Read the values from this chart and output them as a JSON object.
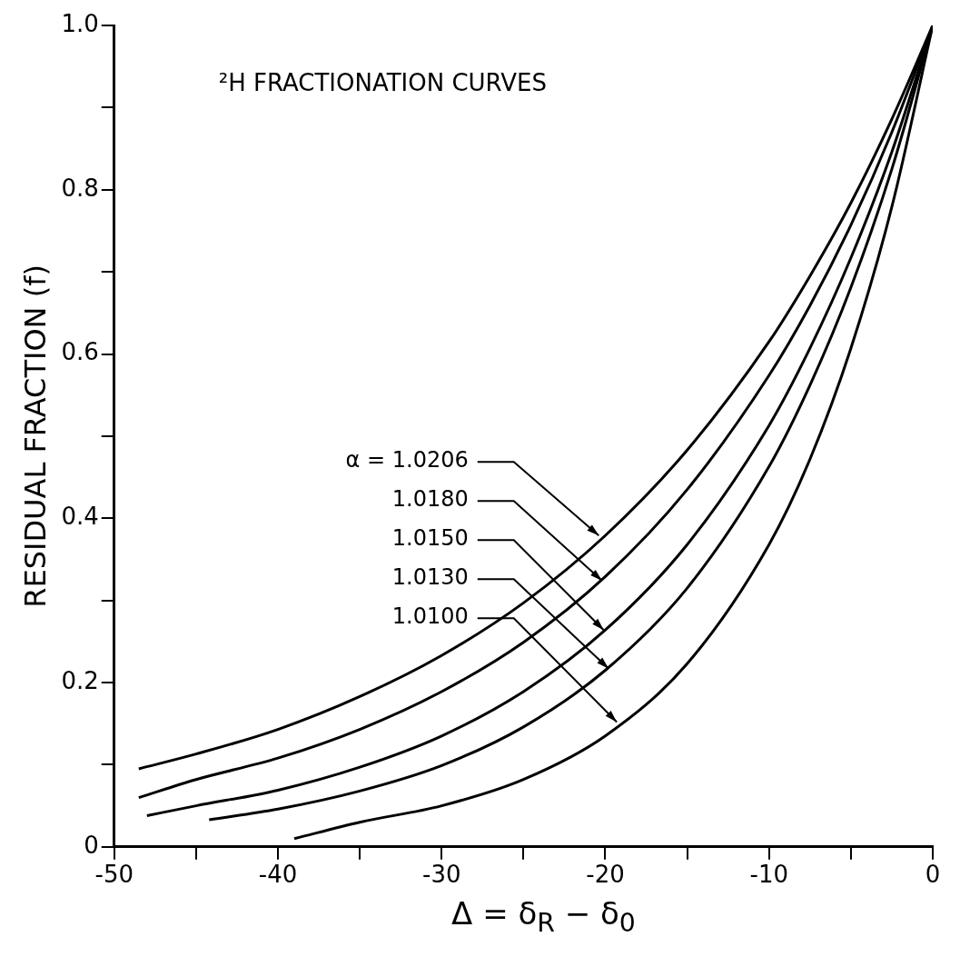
{
  "chart_data": {
    "type": "line",
    "title": "²H FRACTIONATION CURVES",
    "xlabel": "Δ = δ$_{R}$ − δ$_{0}$",
    "ylabel": "RESIDUAL FRACTION (f)",
    "xlim": [
      -50,
      0
    ],
    "ylim": [
      0,
      1
    ],
    "xticks": [
      -50,
      {
        "value": -45,
        "label": null
      },
      -40,
      {
        "value": -35,
        "label": null
      },
      -30,
      {
        "value": -25,
        "label": null
      },
      -20,
      {
        "value": -15,
        "label": null
      },
      -10,
      {
        "value": -5,
        "label": null
      },
      0
    ],
    "yticks": [
      0,
      {
        "value": 0.1,
        "label": null
      },
      0.2,
      {
        "value": 0.3,
        "label": null
      },
      0.4,
      {
        "value": 0.5,
        "label": null
      },
      0.6,
      {
        "value": 0.7,
        "label": null
      },
      0.8,
      {
        "value": 0.9,
        "label": null
      },
      {
        "value": 1,
        "label": "1.0"
      }
    ],
    "grid": false,
    "legend": false,
    "marker": "none",
    "line_style": "solid",
    "series": [
      {
        "color": "#000000",
        "x": [
          -48.5,
          -45,
          -40,
          -35,
          -30,
          -25,
          -20,
          -15,
          -10,
          -7.5,
          -5,
          -2.5,
          0
        ],
        "values": [
          0.095,
          0.113,
          0.143,
          0.183,
          0.233,
          0.297,
          0.379,
          0.483,
          0.615,
          0.695,
          0.784,
          0.886,
          1
        ]
      },
      {
        "color": "#000000",
        "x": [
          -48.5,
          -45,
          -40,
          -35,
          -30,
          -25,
          -20,
          -15,
          -10,
          -7.5,
          -5,
          -2.5,
          0
        ],
        "values": [
          0.06,
          0.082,
          0.108,
          0.143,
          0.189,
          0.249,
          0.329,
          0.435,
          0.574,
          0.659,
          0.757,
          0.87,
          1
        ]
      },
      {
        "color": "#000000",
        "x": [
          -48,
          -45,
          -40,
          -35,
          -30,
          -25,
          -20,
          -15,
          -10,
          -7.5,
          -5,
          -2.5,
          0
        ],
        "values": [
          0.038,
          0.05,
          0.069,
          0.097,
          0.135,
          0.189,
          0.264,
          0.368,
          0.513,
          0.607,
          0.717,
          0.846,
          1
        ]
      },
      {
        "color": "#000000",
        "x": [
          -44.2,
          -40,
          -35,
          -30,
          -25,
          -20,
          -15,
          -10,
          -7.5,
          -5,
          -2.5,
          0
        ],
        "values": [
          0.033,
          0.046,
          0.068,
          0.099,
          0.146,
          0.215,
          0.315,
          0.463,
          0.562,
          0.681,
          0.825,
          1
        ]
      },
      {
        "color": "#000000",
        "x": [
          -39,
          -35,
          -30,
          -25,
          -20,
          -15,
          -10,
          -7.5,
          -5,
          -2.5,
          0
        ],
        "values": [
          0.01,
          0.03,
          0.05,
          0.082,
          0.135,
          0.223,
          0.368,
          0.472,
          0.607,
          0.779,
          1
        ]
      }
    ],
    "annotations": [
      {
        "text": "α = 1.0206",
        "x": -20.4,
        "y": 0.379
      },
      {
        "text": "1.0180",
        "x": -20.2,
        "y": 0.324
      },
      {
        "text": "1.0150",
        "x": -20.1,
        "y": 0.264
      },
      {
        "text": "1.0130",
        "x": -19.8,
        "y": 0.217
      },
      {
        "text": "1.0100",
        "x": -19.3,
        "y": 0.152
      }
    ]
  }
}
